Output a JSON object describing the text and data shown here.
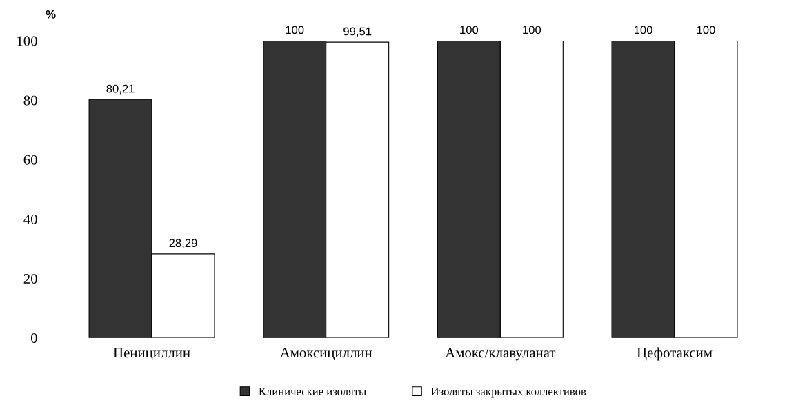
{
  "chart_data": {
    "type": "bar",
    "ylabel": "%",
    "categories": [
      "Пенициллин",
      "Амоксициллин",
      "Амокс/клавуланат",
      "Цефотаксим"
    ],
    "series": [
      {
        "name": "Клинические изоляты",
        "color": "#333333",
        "values": [
          80.21,
          100,
          100,
          100
        ],
        "value_labels": [
          "80,21",
          "100",
          "100",
          "100"
        ]
      },
      {
        "name": "Изоляты закрытых коллективов",
        "color": "#ffffff",
        "values": [
          28.29,
          99.51,
          100,
          100
        ],
        "value_labels": [
          "28,29",
          "99,51",
          "100",
          "100"
        ]
      }
    ],
    "ylim": [
      0,
      100
    ],
    "yticks": [
      0,
      20,
      40,
      60,
      80,
      100
    ],
    "grid": false,
    "legend": "bottom"
  }
}
